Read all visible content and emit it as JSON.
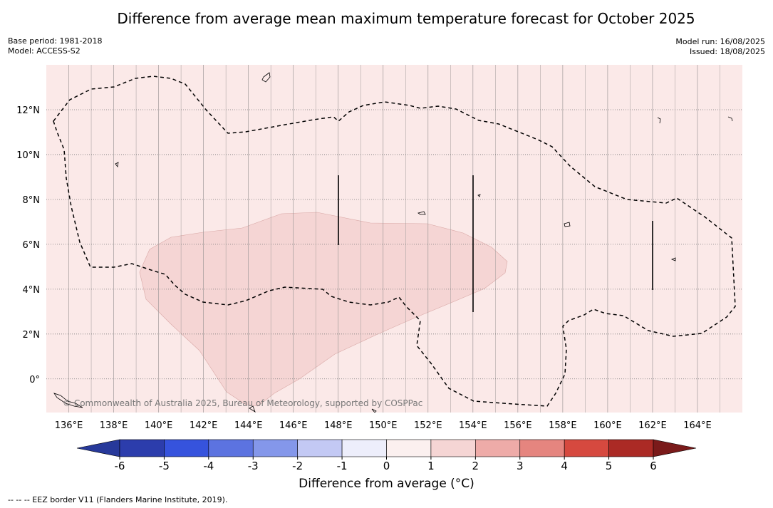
{
  "header": {
    "title": "Difference from average mean maximum temperature forecast for October 2025",
    "base_period": "Base period: 1981-2018",
    "model": "Model: ACCESS-S2",
    "model_run": "Model run: 16/08/2025",
    "issued": "Issued: 18/08/2025"
  },
  "map": {
    "lon_ticks": [
      "136°E",
      "138°E",
      "140°E",
      "142°E",
      "144°E",
      "146°E",
      "148°E",
      "150°E",
      "152°E",
      "154°E",
      "156°E",
      "158°E",
      "160°E",
      "162°E",
      "164°E"
    ],
    "lat_ticks": [
      "12°N",
      "10°N",
      "8°N",
      "6°N",
      "4°N",
      "2°N",
      "0°"
    ],
    "lon_range": [
      135,
      166
    ],
    "lat_range": [
      -1.5,
      14
    ],
    "copyright": "© Commonwealth of Australia 2025, Bureau of Meteorology, supported by COSPPac",
    "background_anomaly_class": "0 to 1",
    "region_anomaly_class": "1 to 2",
    "colors": {
      "background": "#fbe9e8",
      "warm_region": "#f5d5d4",
      "gridline": "#a09a9a",
      "eez_border": "#000000"
    }
  },
  "colorbar": {
    "ticks": [
      "-6",
      "-5",
      "-4",
      "-3",
      "-2",
      "-1",
      "0",
      "1",
      "2",
      "3",
      "4",
      "5",
      "6"
    ],
    "colors": [
      "#27399a",
      "#2c3dac",
      "#3653dd",
      "#5c73e0",
      "#8497ea",
      "#c3c9f4",
      "#edeefb",
      "#fbf0ef",
      "#f5d5d4",
      "#eeaba8",
      "#e5857f",
      "#d6493f",
      "#ab2a25",
      "#7a1a1a"
    ],
    "label": "Difference from average (°C)"
  },
  "footnote": "-- -- -- EEZ border V11 (Flanders Marine Institute, 2019)."
}
